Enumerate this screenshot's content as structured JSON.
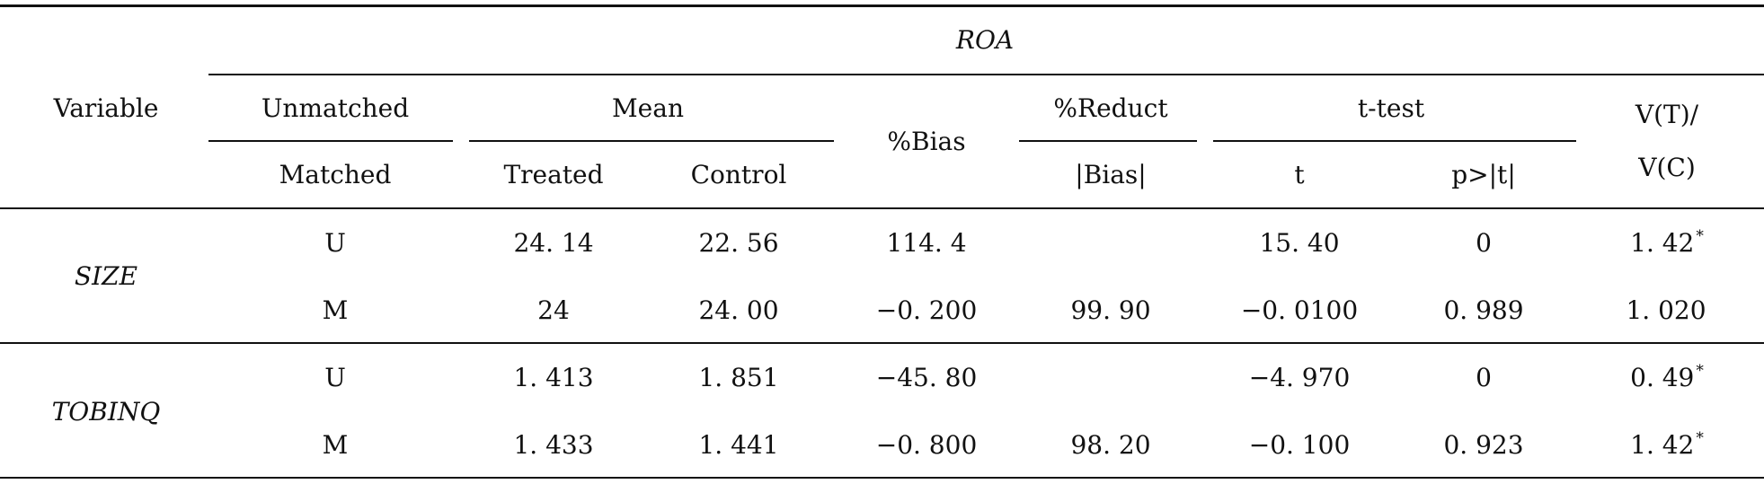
{
  "table": {
    "header": {
      "variable": "Variable",
      "group_title": "ROA",
      "unmatched": "Unmatched",
      "matched": "Matched",
      "mean": "Mean",
      "treated": "Treated",
      "control": "Control",
      "bias": "%Bias",
      "reduct": "%Reduct",
      "abs_bias": "|Bias|",
      "ttest": "t-test",
      "t": "t",
      "p": "p>|t|",
      "vratio_line1": "V(T)/",
      "vratio_line2": "V(C)"
    },
    "rows": [
      {
        "variable": "SIZE",
        "u": {
          "label": "U",
          "treated": "24. 14",
          "control": "22. 56",
          "bias": "114. 4",
          "reduct": "",
          "t": "15. 40",
          "p": "0",
          "v": "1. 42",
          "v_mark": "*"
        },
        "m": {
          "label": "M",
          "treated": "24",
          "control": "24. 00",
          "bias": "−0. 200",
          "reduct": "99. 90",
          "t": "−0. 0100",
          "p": "0. 989",
          "v": "1. 020",
          "v_mark": ""
        }
      },
      {
        "variable": "TOBINQ",
        "u": {
          "label": "U",
          "treated": "1. 413",
          "control": "1. 851",
          "bias": "−45. 80",
          "reduct": "",
          "t": "−4. 970",
          "p": "0",
          "v": "0. 49",
          "v_mark": "*"
        },
        "m": {
          "label": "M",
          "treated": "1. 433",
          "control": "1. 441",
          "bias": "−0. 800",
          "reduct": "98. 20",
          "t": "−0. 100",
          "p": "0. 923",
          "v": "1. 42",
          "v_mark": "*"
        }
      }
    ]
  }
}
